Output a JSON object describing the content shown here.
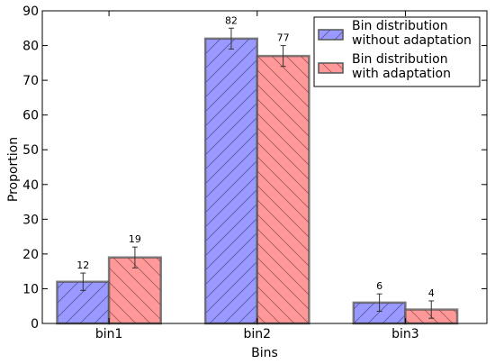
{
  "chart_data": {
    "type": "bar",
    "title": "",
    "xlabel": "Bins",
    "ylabel": "Proportion",
    "ylim": [
      0,
      90
    ],
    "yticks": [
      0,
      10,
      20,
      30,
      40,
      50,
      60,
      70,
      80,
      90
    ],
    "categories": [
      "bin1",
      "bin2",
      "bin3"
    ],
    "series": [
      {
        "name": "Bin distribution\nwithout adaptation",
        "values": [
          12,
          82,
          6
        ],
        "value_labels": [
          "12",
          "82",
          "6"
        ],
        "errors": [
          2.5,
          3,
          2.5
        ],
        "color": "#9999ff",
        "hatch": "forward-diagonal"
      },
      {
        "name": "Bin distribution\nwith adaptation",
        "values": [
          19,
          77,
          4
        ],
        "value_labels": [
          "19",
          "77",
          "4"
        ],
        "errors": [
          3,
          3,
          2.5
        ],
        "color": "#ff9999",
        "hatch": "backward-diagonal"
      }
    ],
    "grid": false,
    "legend_position": "top-right"
  }
}
